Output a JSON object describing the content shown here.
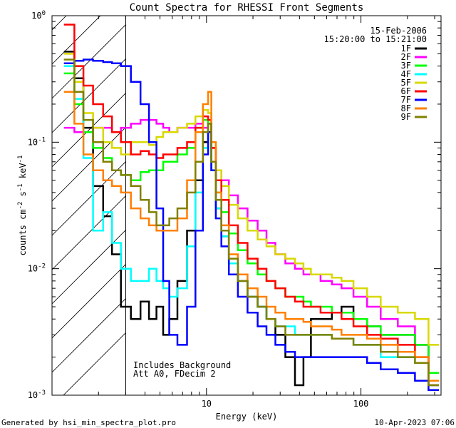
{
  "chart_data": {
    "type": "line",
    "title": "Count Spectra for RHESSI Front Segments",
    "xlabel": "Energy (keV)",
    "ylabel_parts": {
      "base": "counts cm",
      "exp1": "-2",
      "mid": " s",
      "exp2": "-1",
      "end": " keV",
      "exp3": "-1"
    },
    "xscale": "log",
    "yscale": "log",
    "xlim": [
      1,
      330
    ],
    "ylim": [
      0.001,
      1
    ],
    "x_ticks": [
      {
        "v": 10,
        "label": "10"
      },
      {
        "v": 100,
        "label": "100"
      }
    ],
    "y_ticks": [
      {
        "v": 1,
        "label": "10",
        "exp": "0"
      },
      {
        "v": 0.1,
        "label": "10",
        "exp": "-1"
      },
      {
        "v": 0.01,
        "label": "10",
        "exp": "-2"
      },
      {
        "v": 0.001,
        "label": "10",
        "exp": "-3"
      }
    ],
    "date_text": "15-Feb-2006",
    "time_text": "15:20:00 to 15:21:00",
    "annotation_line1": "Includes Background",
    "annotation_line2": "Att A0, FDecim 2",
    "footer_left": "Generated by hsi_min_spectra_plot.pro",
    "footer_right": "10-Apr-2023 07:06",
    "hatch_region_x": [
      1,
      3
    ],
    "series": [
      {
        "name": "1F",
        "color": "#000000",
        "x": [
          1.3,
          1.5,
          1.7,
          2.0,
          2.3,
          2.6,
          3.0,
          3.5,
          4.0,
          4.5,
          5.0,
          5.5,
          6.0,
          7.0,
          8.0,
          9.0,
          10.0,
          10.5,
          11.0,
          12.0,
          13.0,
          15.0,
          17.0,
          20.0,
          23.0,
          26.0,
          30.0,
          35.0,
          40.0,
          45.0,
          50.0,
          60.0,
          70.0,
          80.0,
          100.0,
          120.0,
          150.0,
          200.0,
          250.0,
          300.0
        ],
        "y": [
          0.52,
          0.32,
          0.13,
          0.045,
          0.026,
          0.013,
          0.005,
          0.004,
          0.0055,
          0.004,
          0.005,
          0.003,
          0.004,
          0.008,
          0.02,
          0.05,
          0.1,
          0.14,
          0.06,
          0.03,
          0.018,
          0.011,
          0.008,
          0.006,
          0.005,
          0.004,
          0.003,
          0.002,
          0.0012,
          0.002,
          0.004,
          0.004,
          0.0045,
          0.005,
          0.004,
          0.0035,
          0.003,
          0.003,
          0.0025,
          0.0015
        ]
      },
      {
        "name": "2F",
        "color": "#ff00ff",
        "x": [
          1.3,
          1.5,
          1.7,
          2.0,
          2.3,
          2.6,
          3.0,
          3.5,
          4.0,
          4.5,
          5.0,
          5.5,
          6.0,
          7.0,
          8.0,
          9.0,
          10.0,
          10.5,
          11.0,
          12.0,
          13.0,
          15.0,
          17.0,
          20.0,
          23.0,
          26.0,
          30.0,
          35.0,
          40.0,
          45.0,
          50.0,
          60.0,
          70.0,
          80.0,
          100.0,
          120.0,
          150.0,
          200.0,
          250.0,
          300.0
        ],
        "y": [
          0.13,
          0.12,
          0.12,
          0.13,
          0.13,
          0.12,
          0.13,
          0.14,
          0.15,
          0.15,
          0.14,
          0.13,
          0.12,
          0.13,
          0.13,
          0.14,
          0.13,
          0.12,
          0.09,
          0.06,
          0.05,
          0.038,
          0.03,
          0.024,
          0.02,
          0.016,
          0.013,
          0.011,
          0.01,
          0.009,
          0.009,
          0.008,
          0.0075,
          0.007,
          0.006,
          0.005,
          0.004,
          0.0035,
          0.0025,
          0.0015
        ]
      },
      {
        "name": "3F",
        "color": "#00ff00",
        "x": [
          1.3,
          1.5,
          1.7,
          2.0,
          2.3,
          2.6,
          3.0,
          3.5,
          4.0,
          4.5,
          5.0,
          5.5,
          6.0,
          7.0,
          8.0,
          9.0,
          10.0,
          10.5,
          11.0,
          12.0,
          13.0,
          15.0,
          17.0,
          20.0,
          23.0,
          26.0,
          30.0,
          35.0,
          40.0,
          45.0,
          50.0,
          60.0,
          70.0,
          80.0,
          100.0,
          120.0,
          150.0,
          200.0,
          250.0,
          300.0
        ],
        "y": [
          0.35,
          0.2,
          0.12,
          0.09,
          0.075,
          0.06,
          0.055,
          0.05,
          0.058,
          0.06,
          0.06,
          0.07,
          0.07,
          0.08,
          0.09,
          0.13,
          0.15,
          0.12,
          0.07,
          0.04,
          0.028,
          0.019,
          0.014,
          0.011,
          0.009,
          0.008,
          0.007,
          0.006,
          0.006,
          0.0055,
          0.005,
          0.005,
          0.0045,
          0.0045,
          0.004,
          0.0035,
          0.003,
          0.003,
          0.0025,
          0.0015
        ]
      },
      {
        "name": "4F",
        "color": "#00ffff",
        "x": [
          1.3,
          1.5,
          1.7,
          2.0,
          2.3,
          2.6,
          3.0,
          3.5,
          4.0,
          4.5,
          5.0,
          5.5,
          6.0,
          7.0,
          8.0,
          9.0,
          10.0,
          10.5,
          11.0,
          12.0,
          13.0,
          15.0,
          17.0,
          20.0,
          23.0,
          26.0,
          30.0,
          35.0,
          40.0,
          45.0,
          50.0,
          60.0,
          70.0,
          80.0,
          100.0,
          120.0,
          150.0,
          200.0,
          250.0,
          300.0
        ],
        "y": [
          0.4,
          0.22,
          0.075,
          0.02,
          0.028,
          0.016,
          0.01,
          0.008,
          0.008,
          0.01,
          0.008,
          0.007,
          0.006,
          0.007,
          0.015,
          0.04,
          0.09,
          0.12,
          0.06,
          0.03,
          0.018,
          0.011,
          0.008,
          0.006,
          0.005,
          0.004,
          0.0035,
          0.0035,
          0.003,
          0.003,
          0.003,
          0.003,
          0.0028,
          0.0028,
          0.0025,
          0.0025,
          0.002,
          0.002,
          0.0018,
          0.0012
        ]
      },
      {
        "name": "5F",
        "color": "#d8d800",
        "x": [
          1.3,
          1.5,
          1.7,
          2.0,
          2.3,
          2.6,
          3.0,
          3.5,
          4.0,
          4.5,
          5.0,
          5.5,
          6.0,
          7.0,
          8.0,
          9.0,
          10.0,
          10.5,
          11.0,
          12.0,
          13.0,
          15.0,
          17.0,
          20.0,
          23.0,
          26.0,
          30.0,
          35.0,
          40.0,
          45.0,
          50.0,
          60.0,
          70.0,
          80.0,
          100.0,
          120.0,
          150.0,
          200.0,
          250.0,
          300.0
        ],
        "y": [
          0.5,
          0.3,
          0.17,
          0.13,
          0.1,
          0.09,
          0.08,
          0.1,
          0.1,
          0.095,
          0.11,
          0.12,
          0.12,
          0.13,
          0.14,
          0.16,
          0.18,
          0.17,
          0.1,
          0.06,
          0.045,
          0.032,
          0.025,
          0.02,
          0.017,
          0.015,
          0.013,
          0.012,
          0.011,
          0.01,
          0.009,
          0.009,
          0.0085,
          0.008,
          0.007,
          0.006,
          0.005,
          0.0045,
          0.004,
          0.0025
        ]
      },
      {
        "name": "6F",
        "color": "#ff0000",
        "x": [
          1.3,
          1.5,
          1.7,
          2.0,
          2.3,
          2.6,
          3.0,
          3.5,
          4.0,
          4.5,
          5.0,
          5.5,
          6.0,
          7.0,
          8.0,
          9.0,
          10.0,
          10.5,
          11.0,
          12.0,
          13.0,
          15.0,
          17.0,
          20.0,
          23.0,
          26.0,
          30.0,
          35.0,
          40.0,
          45.0,
          50.0,
          60.0,
          70.0,
          80.0,
          100.0,
          120.0,
          150.0,
          200.0,
          250.0,
          300.0
        ],
        "y": [
          0.85,
          0.4,
          0.28,
          0.2,
          0.16,
          0.12,
          0.1,
          0.08,
          0.085,
          0.08,
          0.075,
          0.08,
          0.08,
          0.09,
          0.1,
          0.13,
          0.16,
          0.15,
          0.09,
          0.05,
          0.035,
          0.022,
          0.016,
          0.012,
          0.01,
          0.008,
          0.007,
          0.006,
          0.0055,
          0.005,
          0.005,
          0.0045,
          0.0045,
          0.004,
          0.0035,
          0.003,
          0.0028,
          0.0025,
          0.002,
          0.0012
        ]
      },
      {
        "name": "7F",
        "color": "#0000ff",
        "x": [
          1.3,
          1.5,
          1.7,
          2.0,
          2.3,
          2.6,
          3.0,
          3.5,
          4.0,
          4.5,
          5.0,
          5.5,
          6.0,
          7.0,
          8.0,
          9.0,
          10.0,
          10.5,
          11.0,
          12.0,
          13.0,
          15.0,
          17.0,
          20.0,
          23.0,
          26.0,
          30.0,
          35.0,
          40.0,
          45.0,
          50.0,
          60.0,
          70.0,
          80.0,
          100.0,
          120.0,
          150.0,
          200.0,
          250.0,
          300.0
        ],
        "y": [
          0.42,
          0.44,
          0.45,
          0.44,
          0.43,
          0.42,
          0.4,
          0.3,
          0.2,
          0.1,
          0.03,
          0.008,
          0.003,
          0.0025,
          0.005,
          0.02,
          0.08,
          0.12,
          0.06,
          0.025,
          0.015,
          0.009,
          0.006,
          0.0045,
          0.0035,
          0.003,
          0.0025,
          0.0022,
          0.002,
          0.002,
          0.002,
          0.002,
          0.002,
          0.002,
          0.002,
          0.0018,
          0.0016,
          0.0015,
          0.0013,
          0.0011
        ]
      },
      {
        "name": "8F",
        "color": "#ff8000",
        "x": [
          1.3,
          1.5,
          1.7,
          2.0,
          2.3,
          2.6,
          3.0,
          3.5,
          4.0,
          4.5,
          5.0,
          5.5,
          6.0,
          7.0,
          8.0,
          9.0,
          10.0,
          10.5,
          11.0,
          12.0,
          13.0,
          15.0,
          17.0,
          20.0,
          23.0,
          26.0,
          30.0,
          35.0,
          40.0,
          45.0,
          50.0,
          60.0,
          70.0,
          80.0,
          100.0,
          120.0,
          150.0,
          200.0,
          250.0,
          300.0
        ],
        "y": [
          0.25,
          0.14,
          0.08,
          0.06,
          0.05,
          0.045,
          0.04,
          0.03,
          0.025,
          0.022,
          0.02,
          0.02,
          0.02,
          0.025,
          0.05,
          0.12,
          0.2,
          0.25,
          0.1,
          0.04,
          0.022,
          0.013,
          0.009,
          0.007,
          0.006,
          0.005,
          0.0045,
          0.004,
          0.004,
          0.0038,
          0.0035,
          0.0035,
          0.0033,
          0.003,
          0.003,
          0.0028,
          0.0025,
          0.0022,
          0.002,
          0.0013
        ]
      },
      {
        "name": "9F",
        "color": "#808000",
        "x": [
          1.3,
          1.5,
          1.7,
          2.0,
          2.3,
          2.6,
          3.0,
          3.5,
          4.0,
          4.5,
          5.0,
          5.5,
          6.0,
          7.0,
          8.0,
          9.0,
          10.0,
          10.5,
          11.0,
          12.0,
          13.0,
          15.0,
          17.0,
          20.0,
          23.0,
          26.0,
          30.0,
          35.0,
          40.0,
          45.0,
          50.0,
          60.0,
          70.0,
          80.0,
          100.0,
          120.0,
          150.0,
          200.0,
          250.0,
          300.0
        ],
        "y": [
          0.45,
          0.25,
          0.15,
          0.1,
          0.07,
          0.06,
          0.055,
          0.045,
          0.035,
          0.028,
          0.022,
          0.022,
          0.025,
          0.03,
          0.04,
          0.07,
          0.12,
          0.14,
          0.07,
          0.035,
          0.02,
          0.012,
          0.008,
          0.006,
          0.005,
          0.004,
          0.0035,
          0.003,
          0.003,
          0.003,
          0.003,
          0.003,
          0.0028,
          0.0028,
          0.0025,
          0.0025,
          0.0022,
          0.002,
          0.0018,
          0.0012
        ]
      }
    ]
  }
}
